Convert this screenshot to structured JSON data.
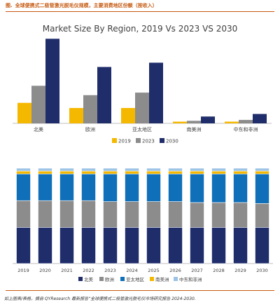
{
  "header": {
    "figure_label": "图.",
    "title": "全球便携式二极管激光脱毛仪规模，主要消费地区份额（按收入）"
  },
  "footer": {
    "source": "如上图表/表格，摘自 QYResearch 最新报告“全球便携式二极管激光脱毛仪市场研究报告 2024-2030."
  },
  "colors": {
    "accent": "#c55a11",
    "y2019": "#f5b800",
    "y2023": "#8c8c8c",
    "y2030": "#1f2d6b",
    "north_america": "#1f2d6b",
    "europe": "#8c8c8c",
    "asia_pacific": "#0f6fb8",
    "south_america": "#f5b800",
    "mea": "#9dc3e6"
  },
  "chart_data": [
    {
      "type": "bar",
      "title": "Market Size By Region, 2019 Vs 2023 VS 2030",
      "categories": [
        "北美",
        "欧洲",
        "亚太地区",
        "南美洲",
        "中东和非洲"
      ],
      "series": [
        {
          "name": "2019",
          "values": [
            24,
            18,
            18,
            2,
            2
          ]
        },
        {
          "name": "2023",
          "values": [
            44,
            33,
            36,
            3,
            4
          ]
        },
        {
          "name": "2030",
          "values": [
            99,
            66,
            71,
            8,
            11
          ]
        }
      ],
      "ylim": [
        0,
        105
      ],
      "legend_position": "bottom-left",
      "grid": false
    },
    {
      "type": "bar",
      "stacked": "percent",
      "categories": [
        "2019",
        "2020",
        "2021",
        "2022",
        "2023",
        "2024",
        "2025",
        "2026",
        "2027",
        "2028",
        "2029",
        "2030"
      ],
      "series": [
        {
          "name": "北美",
          "values": [
            0.38,
            0.38,
            0.38,
            0.38,
            0.38,
            0.38,
            0.38,
            0.38,
            0.38,
            0.38,
            0.38,
            0.38
          ]
        },
        {
          "name": "欧洲",
          "values": [
            0.28,
            0.28,
            0.28,
            0.28,
            0.27,
            0.27,
            0.27,
            0.27,
            0.26,
            0.26,
            0.26,
            0.25
          ]
        },
        {
          "name": "亚太地区",
          "values": [
            0.28,
            0.28,
            0.28,
            0.28,
            0.29,
            0.29,
            0.29,
            0.29,
            0.3,
            0.3,
            0.3,
            0.31
          ]
        },
        {
          "name": "南美洲",
          "values": [
            0.03,
            0.03,
            0.03,
            0.03,
            0.03,
            0.03,
            0.03,
            0.03,
            0.03,
            0.03,
            0.03,
            0.03
          ]
        },
        {
          "name": "中东和非洲",
          "values": [
            0.03,
            0.03,
            0.03,
            0.03,
            0.03,
            0.03,
            0.03,
            0.03,
            0.03,
            0.03,
            0.03,
            0.03
          ]
        }
      ],
      "ylim": [
        0,
        1
      ],
      "legend_position": "bottom-center",
      "grid": false
    }
  ]
}
